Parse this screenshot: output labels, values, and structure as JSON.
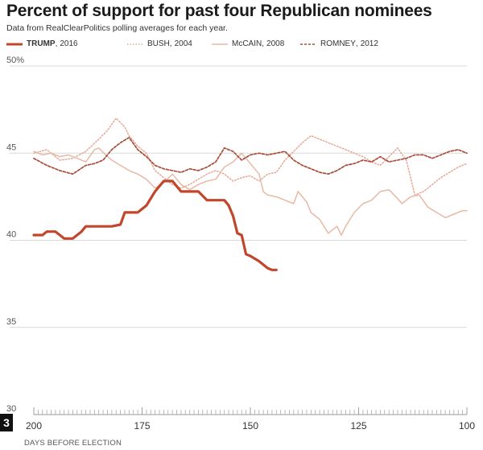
{
  "chart_data": {
    "type": "line",
    "title": "Percent of support for past four Republican nominees",
    "subtitle": "Data from RealClearPolitics polling averages for each year.",
    "xlabel": "DAYS BEFORE ELECTION",
    "ylabel": "",
    "xlim": [
      200,
      100
    ],
    "ylim": [
      30,
      50
    ],
    "xticks": [
      200,
      175,
      150,
      125,
      100
    ],
    "yticks": [
      30,
      35,
      40,
      45,
      50
    ],
    "ytick_labels": [
      "30",
      "35",
      "40",
      "45",
      "50%"
    ],
    "grid": true,
    "legend_position": "top",
    "series": [
      {
        "name": "TRUMP",
        "year": "2016",
        "color": "#c0472b",
        "style": "solid-thick",
        "x": [
          200,
          198,
          197,
          195,
          193,
          191,
          189,
          188,
          186,
          184,
          182,
          180,
          179,
          177,
          176,
          174,
          172,
          170,
          168,
          166,
          164,
          162,
          160,
          158,
          156,
          155,
          154,
          153,
          152,
          151,
          150,
          148,
          147,
          146,
          145,
          144
        ],
        "y": [
          40.3,
          40.3,
          40.5,
          40.5,
          40.1,
          40.1,
          40.5,
          40.8,
          40.8,
          40.8,
          40.8,
          40.9,
          41.6,
          41.6,
          41.6,
          42.0,
          42.8,
          43.4,
          43.4,
          42.8,
          42.8,
          42.8,
          42.3,
          42.3,
          42.3,
          42.0,
          41.4,
          40.4,
          40.3,
          39.2,
          39.1,
          38.8,
          38.6,
          38.4,
          38.3,
          38.3
        ]
      },
      {
        "name": "BUSH",
        "year": "2004",
        "color": "#e8a795",
        "style": "dotted",
        "x": [
          200,
          197,
          194,
          191,
          188,
          185,
          183,
          181,
          179,
          178,
          176,
          174,
          172,
          170,
          168,
          166,
          164,
          162,
          160,
          158,
          156,
          154,
          152,
          150,
          148,
          146,
          144,
          142,
          140,
          138,
          136,
          134,
          132,
          130,
          128,
          126,
          124,
          122,
          120,
          118,
          116,
          114,
          112,
          110,
          108,
          106,
          104,
          102,
          100
        ],
        "y": [
          45.0,
          45.2,
          44.6,
          44.7,
          45.1,
          45.8,
          46.3,
          47.0,
          46.5,
          46.0,
          45.4,
          45.0,
          44.0,
          43.6,
          43.2,
          43.0,
          43.2,
          43.5,
          43.8,
          44.0,
          43.8,
          43.4,
          43.6,
          43.7,
          43.4,
          43.8,
          43.9,
          44.6,
          45.1,
          45.6,
          46.0,
          45.8,
          45.6,
          45.4,
          45.2,
          45.0,
          44.8,
          44.5,
          44.3,
          44.8,
          45.3,
          44.6,
          42.6,
          42.8,
          43.2,
          43.6,
          43.9,
          44.2,
          44.4
        ]
      },
      {
        "name": "McCAIN",
        "year": "2008",
        "color": "#e8b9a4",
        "style": "solid",
        "x": [
          200,
          198,
          196,
          194,
          192,
          190,
          188,
          186,
          185,
          183,
          182,
          180,
          178,
          176,
          174,
          172,
          170,
          168,
          166,
          164,
          162,
          160,
          158,
          156,
          154,
          152,
          150,
          148,
          147,
          146,
          144,
          142,
          140,
          139,
          137,
          136,
          134,
          132,
          130,
          129,
          128,
          126,
          124,
          122,
          120,
          118,
          116,
          115,
          113,
          111,
          109,
          107,
          105,
          103,
          101,
          100
        ],
        "y": [
          45.1,
          44.9,
          45.0,
          44.8,
          44.9,
          44.7,
          44.5,
          45.2,
          45.3,
          44.8,
          44.6,
          44.3,
          44.0,
          43.8,
          43.5,
          43.0,
          43.3,
          43.8,
          43.2,
          42.9,
          43.2,
          43.4,
          43.5,
          44.2,
          44.5,
          45.0,
          44.4,
          43.8,
          42.8,
          42.6,
          42.5,
          42.3,
          42.1,
          42.8,
          42.2,
          41.6,
          41.2,
          40.4,
          40.8,
          40.3,
          40.8,
          41.6,
          42.1,
          42.3,
          42.8,
          42.9,
          42.4,
          42.1,
          42.5,
          42.6,
          41.9,
          41.6,
          41.3,
          41.5,
          41.7,
          41.7
        ]
      },
      {
        "name": "ROMNEY",
        "year": "2012",
        "color": "#a94b37",
        "style": "dashed",
        "x": [
          200,
          197,
          194,
          191,
          188,
          186,
          184,
          182,
          180,
          178,
          176,
          174,
          172,
          170,
          168,
          166,
          164,
          162,
          160,
          158,
          156,
          154,
          152,
          150,
          148,
          146,
          144,
          142,
          140,
          138,
          136,
          134,
          132,
          130,
          128,
          126,
          124,
          122,
          120,
          118,
          116,
          114,
          112,
          110,
          108,
          106,
          104,
          102,
          100
        ],
        "y": [
          44.7,
          44.3,
          44.0,
          43.8,
          44.3,
          44.4,
          44.6,
          45.2,
          45.6,
          45.9,
          45.2,
          44.8,
          44.3,
          44.1,
          44.0,
          43.9,
          44.1,
          44.0,
          44.2,
          44.5,
          45.3,
          45.1,
          44.6,
          44.9,
          45.0,
          44.9,
          45.0,
          45.1,
          44.6,
          44.3,
          44.1,
          43.9,
          43.8,
          44.0,
          44.3,
          44.4,
          44.6,
          44.5,
          44.8,
          44.5,
          44.6,
          44.7,
          44.9,
          44.9,
          44.7,
          44.9,
          45.1,
          45.2,
          45.0
        ]
      }
    ]
  },
  "page_badge": "3"
}
